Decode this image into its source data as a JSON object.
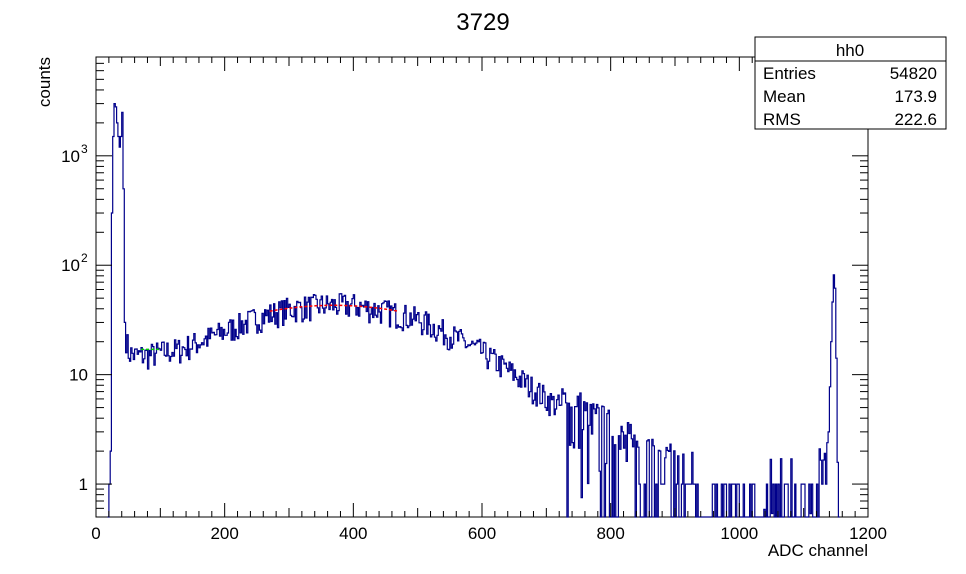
{
  "chart_data": {
    "type": "histogram",
    "title": "3729",
    "xlabel": "ADC channel",
    "ylabel": "counts",
    "xlim": [
      0,
      1200
    ],
    "ylim": [
      0.5,
      8000
    ],
    "log_y": true,
    "x_ticks": [
      {
        "value": 0,
        "label": "0"
      },
      {
        "value": 200,
        "label": "200"
      },
      {
        "value": 400,
        "label": "400"
      },
      {
        "value": 600,
        "label": "600"
      },
      {
        "value": 800,
        "label": "800"
      },
      {
        "value": 1000,
        "label": "1000"
      },
      {
        "value": 1200,
        "label": "1200"
      }
    ],
    "y_ticks": [
      {
        "value": 1,
        "label": "1"
      },
      {
        "value": 10,
        "label": "10"
      },
      {
        "value": 100,
        "label": "10",
        "exponent": "2"
      },
      {
        "value": 1000,
        "label": "10",
        "exponent": "3"
      }
    ],
    "line_color": "#00008b",
    "fit_color": "#ff0000",
    "fit2_color": "#00cc00",
    "envelope": [
      [
        18,
        0.5
      ],
      [
        20,
        1
      ],
      [
        22,
        2
      ],
      [
        24,
        300
      ],
      [
        26,
        1500
      ],
      [
        28,
        3000
      ],
      [
        30,
        2800
      ],
      [
        32,
        2000
      ],
      [
        34,
        1500
      ],
      [
        36,
        1200
      ],
      [
        38,
        1500
      ],
      [
        40,
        2500
      ],
      [
        42,
        500
      ],
      [
        44,
        30
      ],
      [
        46,
        22
      ],
      [
        50,
        16
      ],
      [
        60,
        15
      ],
      [
        80,
        15
      ],
      [
        100,
        16
      ],
      [
        130,
        17
      ],
      [
        160,
        20
      ],
      [
        200,
        25
      ],
      [
        250,
        33
      ],
      [
        300,
        40
      ],
      [
        350,
        43
      ],
      [
        400,
        43
      ],
      [
        450,
        38
      ],
      [
        500,
        32
      ],
      [
        550,
        23
      ],
      [
        600,
        16
      ],
      [
        650,
        10
      ],
      [
        700,
        6
      ],
      [
        750,
        4
      ],
      [
        800,
        2.5
      ],
      [
        850,
        1.6
      ],
      [
        900,
        1.2
      ],
      [
        950,
        1.0
      ],
      [
        1000,
        0.9
      ],
      [
        1050,
        0.9
      ],
      [
        1100,
        0.9
      ],
      [
        1130,
        1.2
      ],
      [
        1138,
        3
      ],
      [
        1142,
        20
      ],
      [
        1145,
        70
      ],
      [
        1147,
        95
      ],
      [
        1149,
        40
      ],
      [
        1151,
        5
      ],
      [
        1153,
        0.5
      ],
      [
        1200,
        0.5
      ]
    ],
    "fit_range": [
      270,
      470
    ],
    "fit_params": {
      "amplitude": 43,
      "mean": 370,
      "sigma": 200
    },
    "fit2_range": [
      70,
      100
    ],
    "fit2_value": 17,
    "stats": {
      "name": "hh0",
      "rows": [
        {
          "label": "Entries",
          "value": "54820"
        },
        {
          "label": "Mean",
          "value": "173.9"
        },
        {
          "label": "RMS",
          "value": "222.6"
        }
      ]
    }
  }
}
